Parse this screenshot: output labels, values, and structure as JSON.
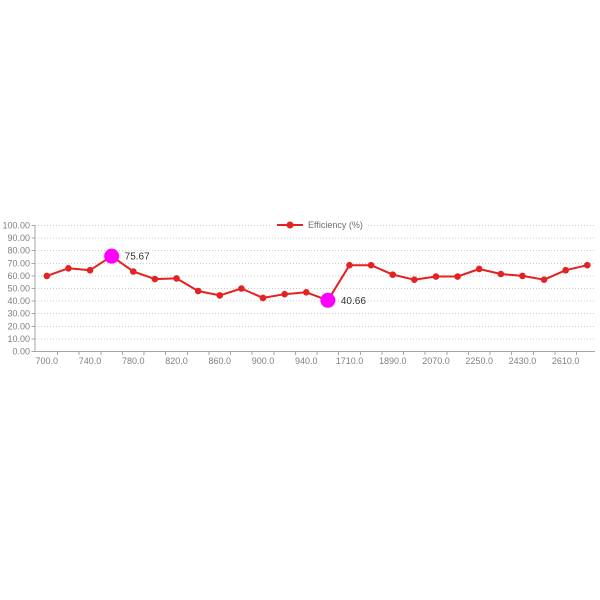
{
  "legend": {
    "label": "Efficiency (%)"
  },
  "chart_data": {
    "type": "line",
    "title": "",
    "series": [
      {
        "name": "Efficiency (%)",
        "values": [
          60,
          66,
          64.5,
          75.67,
          63.5,
          57.5,
          58,
          48,
          44.5,
          50,
          42.5,
          45.5,
          47,
          40.66,
          68.5,
          68.5,
          61,
          57,
          59.5,
          59.5,
          65.5,
          61.5,
          60,
          57,
          64.5,
          68.5
        ]
      }
    ],
    "x_tick_labels": [
      "700.0",
      "740.0",
      "780.0",
      "820.0",
      "860.0",
      "900.0",
      "940.0",
      "1710.0",
      "1890.0",
      "2070.0",
      "2250.0",
      "2430.0",
      "2610.0"
    ],
    "label_every_n_points": 2,
    "y_axis": {
      "min": 0,
      "max": 100,
      "step": 10,
      "tick_labels": [
        "0.00",
        "10.00",
        "20.00",
        "30.00",
        "40.00",
        "50.00",
        "60.00",
        "70.00",
        "80.00",
        "90.00",
        "100.00"
      ]
    },
    "highlights": [
      {
        "index": 3,
        "label": "75.67"
      },
      {
        "index": 13,
        "label": "40.66"
      }
    ],
    "grid": "horizontal-dotted",
    "legend_position": "top-center"
  },
  "colors": {
    "series": "#e32221",
    "highlight": "#ff00ff",
    "gridline": "#cccccc",
    "axis": "#a6a6a6",
    "axis_label": "#808080",
    "legend_label": "#6e6e6e",
    "annotation": "#333333",
    "background": "#ffffff"
  }
}
